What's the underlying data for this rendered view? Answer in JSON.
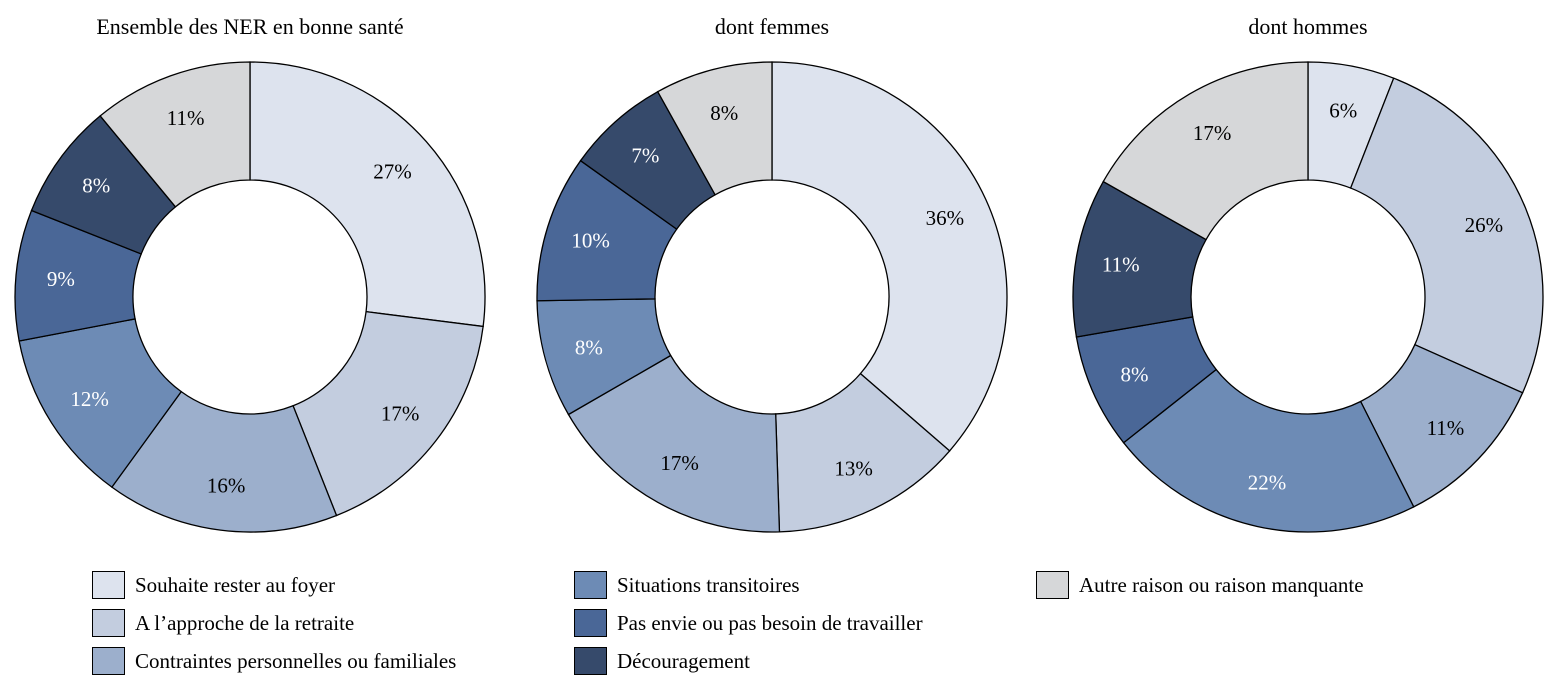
{
  "chart_data": [
    {
      "type": "donut",
      "title": "Ensemble des NER en bonne santé",
      "categories": [
        "Souhaite rester au foyer",
        "A l’approche de la retraite",
        "Contraintes personnelles ou familiales",
        "Situations transitoires",
        "Pas envie ou pas besoin de travailler",
        "Découragement",
        "Autre raison ou raison manquante"
      ],
      "values": [
        27,
        17,
        16,
        12,
        9,
        8,
        11
      ],
      "labels": [
        "27%",
        "17%",
        "16%",
        "12%",
        "9%",
        "8%",
        "11%"
      ]
    },
    {
      "type": "donut",
      "title": "dont femmes",
      "categories": [
        "Souhaite rester au foyer",
        "A l’approche de la retraite",
        "Contraintes personnelles ou familiales",
        "Situations transitoires",
        "Pas envie ou pas besoin de travailler",
        "Découragement",
        "Autre raison ou raison manquante"
      ],
      "values": [
        36,
        13,
        17,
        8,
        10,
        7,
        8
      ],
      "labels": [
        "36%",
        "13%",
        "17%",
        "8%",
        "10%",
        "7%",
        "8%"
      ]
    },
    {
      "type": "donut",
      "title": "dont hommes",
      "categories": [
        "Souhaite rester au foyer",
        "A l’approche de la retraite",
        "Contraintes personnelles ou familiales",
        "Situations transitoires",
        "Pas envie ou pas besoin de travailler",
        "Découragement",
        "Autre raison ou raison manquante"
      ],
      "values": [
        6,
        26,
        11,
        22,
        8,
        11,
        17
      ],
      "labels": [
        "6%",
        "26%",
        "11%",
        "22%",
        "8%",
        "11%",
        "17%"
      ]
    }
  ],
  "legend": {
    "placement": "bottom",
    "items": [
      {
        "label": "Souhaite rester au foyer",
        "color": "#dde3ee"
      },
      {
        "label": "A l’approche de la retraite",
        "color": "#c3cddf"
      },
      {
        "label": "Contraintes personnelles ou familiales",
        "color": "#9cafcc"
      },
      {
        "label": "Situations transitoires",
        "color": "#6d8bb5"
      },
      {
        "label": "Pas envie ou pas besoin de travailler",
        "color": "#4a6797"
      },
      {
        "label": "Découragement",
        "color": "#364a6b"
      },
      {
        "label": "Autre raison ou raison manquante",
        "color": "#d6d7d9"
      }
    ]
  }
}
